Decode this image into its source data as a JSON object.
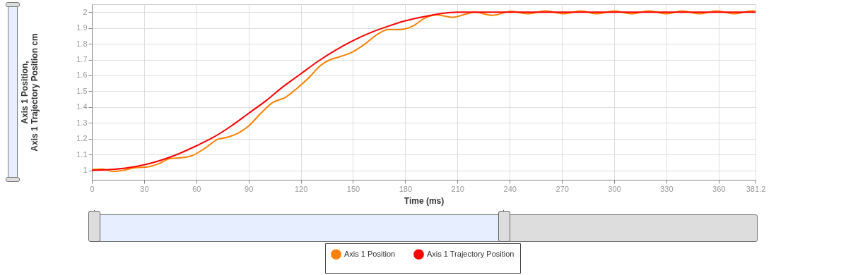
{
  "chart_data": {
    "type": "line",
    "xlabel": "Time (ms)",
    "ylabel": "Axis 1 Position,\nAxis 1 Trajectory Position cm",
    "xlim": [
      0,
      381.2
    ],
    "xticks": [
      0,
      30,
      60,
      90,
      120,
      150,
      180,
      210,
      240,
      270,
      300,
      330,
      360,
      381.2
    ],
    "ylim": [
      0.94,
      2.05
    ],
    "yticks": [
      1,
      1.1,
      1.2,
      1.3,
      1.4,
      1.5,
      1.6,
      1.7,
      1.8,
      1.9,
      2
    ],
    "grid": true,
    "legend": "bottom",
    "marker": "none",
    "series": [
      {
        "name": "Axis 1 Position",
        "color": "#ff8000",
        "x": [
          0,
          6,
          12,
          18,
          24,
          31,
          38,
          45,
          52,
          58,
          65,
          72,
          78,
          84,
          90,
          97,
          104,
          111,
          118,
          125,
          131,
          137,
          143,
          150,
          157,
          164,
          170,
          177,
          184,
          191,
          198,
          207,
          214,
          220,
          230,
          241,
          250,
          261,
          271,
          281,
          290,
          300,
          310,
          320,
          330,
          339,
          349,
          359,
          369,
          379,
          381.2
        ],
        "values": [
          1.005,
          1.008,
          0.993,
          1.0,
          1.015,
          1.02,
          1.04,
          1.075,
          1.08,
          1.095,
          1.14,
          1.195,
          1.21,
          1.235,
          1.28,
          1.36,
          1.43,
          1.46,
          1.52,
          1.59,
          1.66,
          1.7,
          1.72,
          1.75,
          1.8,
          1.86,
          1.89,
          1.89,
          1.91,
          1.96,
          1.983,
          1.967,
          1.985,
          2.0,
          1.98,
          2.005,
          1.99,
          2.008,
          1.99,
          2.008,
          1.99,
          2.008,
          1.99,
          2.008,
          1.99,
          2.008,
          1.99,
          2.008,
          1.99,
          2.008,
          2.005
        ]
      },
      {
        "name": "Axis 1 Trajectory Position",
        "color": "#ff0000",
        "x": [
          0,
          10,
          20,
          30,
          40,
          50,
          60,
          70,
          80,
          90,
          100,
          110,
          120,
          130,
          140,
          150,
          160,
          170,
          180,
          190,
          200,
          210,
          220,
          381.2
        ],
        "values": [
          1.0,
          1.005,
          1.015,
          1.035,
          1.065,
          1.105,
          1.155,
          1.21,
          1.28,
          1.36,
          1.44,
          1.53,
          1.61,
          1.69,
          1.76,
          1.82,
          1.87,
          1.91,
          1.945,
          1.97,
          1.99,
          2.0,
          2.0,
          2.0
        ]
      }
    ]
  }
}
